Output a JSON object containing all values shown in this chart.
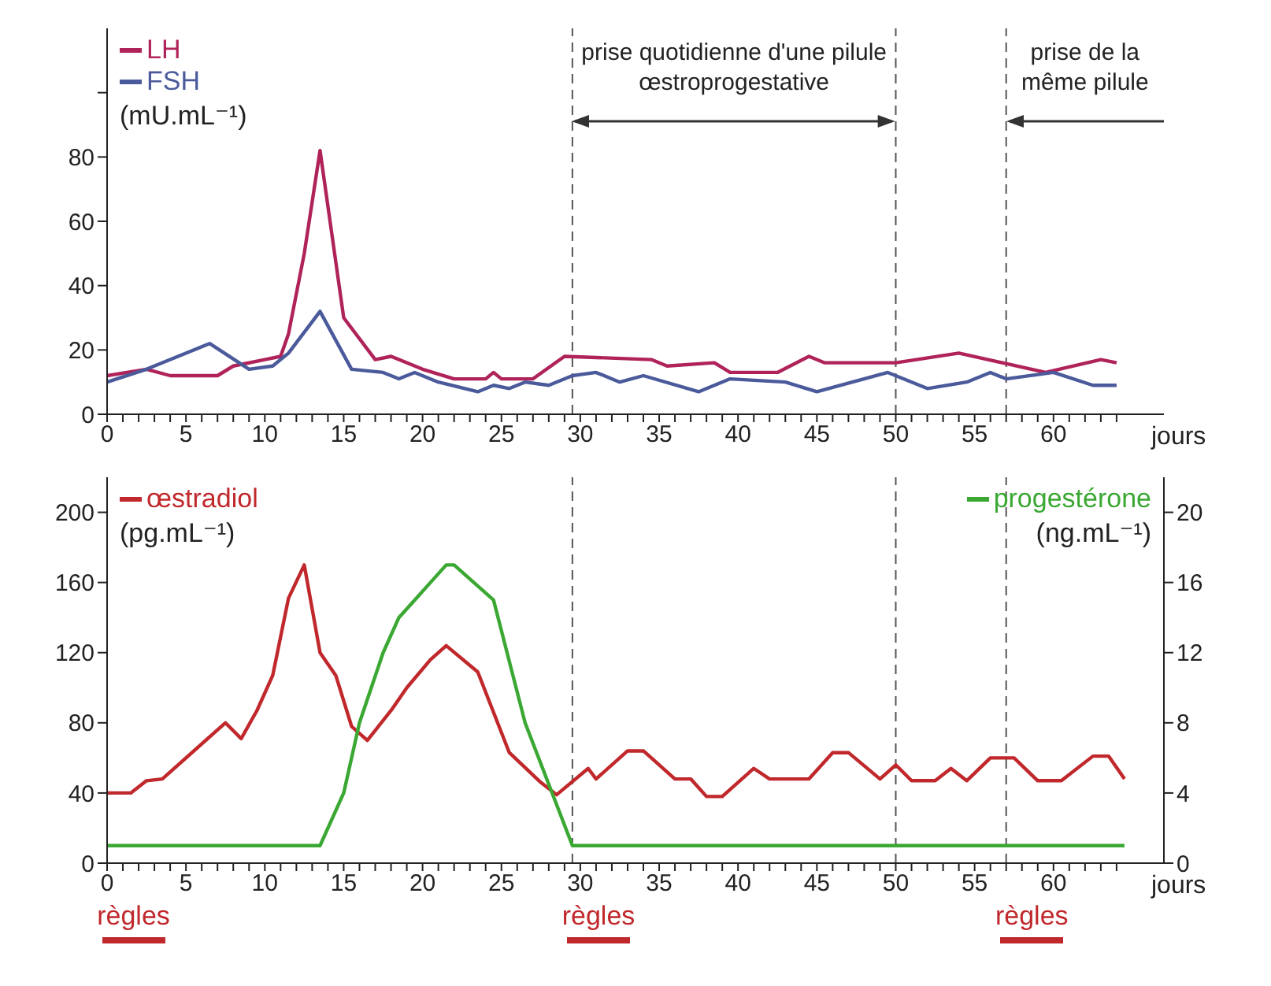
{
  "chart_data": [
    {
      "type": "line",
      "xlabel": "jours",
      "ylabel": "(mU.mL⁻¹)",
      "legend": "top left",
      "marker": "none",
      "line_style": "solid",
      "xlim": [
        0,
        67
      ],
      "ylim": [
        0,
        120
      ],
      "xticks": [
        0,
        {
          "value": 1,
          "label": null
        },
        {
          "value": 2,
          "label": null
        },
        {
          "value": 3,
          "label": null
        },
        {
          "value": 4,
          "label": null
        },
        5,
        {
          "value": 6,
          "label": null
        },
        {
          "value": 7,
          "label": null
        },
        {
          "value": 8,
          "label": null
        },
        {
          "value": 9,
          "label": null
        },
        10,
        {
          "value": 11,
          "label": null
        },
        {
          "value": 12,
          "label": null
        },
        {
          "value": 13,
          "label": null
        },
        {
          "value": 14,
          "label": null
        },
        15,
        {
          "value": 16,
          "label": null
        },
        {
          "value": 17,
          "label": null
        },
        {
          "value": 18,
          "label": null
        },
        {
          "value": 19,
          "label": null
        },
        20,
        {
          "value": 21,
          "label": null
        },
        {
          "value": 22,
          "label": null
        },
        {
          "value": 23,
          "label": null
        },
        {
          "value": 24,
          "label": null
        },
        25,
        {
          "value": 26,
          "label": null
        },
        {
          "value": 27,
          "label": null
        },
        {
          "value": 28,
          "label": null
        },
        {
          "value": 29,
          "label": null
        },
        30,
        {
          "value": 31,
          "label": null
        },
        {
          "value": 32,
          "label": null
        },
        {
          "value": 33,
          "label": null
        },
        {
          "value": 34,
          "label": null
        },
        35,
        {
          "value": 36,
          "label": null
        },
        {
          "value": 37,
          "label": null
        },
        {
          "value": 38,
          "label": null
        },
        {
          "value": 39,
          "label": null
        },
        40,
        {
          "value": 41,
          "label": null
        },
        {
          "value": 42,
          "label": null
        },
        {
          "value": 43,
          "label": null
        },
        {
          "value": 44,
          "label": null
        },
        45,
        {
          "value": 46,
          "label": null
        },
        {
          "value": 47,
          "label": null
        },
        {
          "value": 48,
          "label": null
        },
        {
          "value": 49,
          "label": null
        },
        50,
        {
          "value": 51,
          "label": null
        },
        {
          "value": 52,
          "label": null
        },
        {
          "value": 53,
          "label": null
        },
        {
          "value": 54,
          "label": null
        },
        55,
        {
          "value": 56,
          "label": null
        },
        {
          "value": 57,
          "label": null
        },
        {
          "value": 58,
          "label": null
        },
        {
          "value": 59,
          "label": null
        },
        60,
        {
          "value": 61,
          "label": null
        },
        {
          "value": 62,
          "label": null
        },
        {
          "value": 63,
          "label": null
        },
        {
          "value": 64,
          "label": null
        }
      ],
      "yticks": [
        0,
        20,
        40,
        60,
        80,
        {
          "value": 100,
          "label": null
        }
      ],
      "series": [
        {
          "name": "LH",
          "color": "#b0235a",
          "x": [
            0,
            2.5,
            4,
            7,
            8,
            10,
            11,
            11.5,
            12.5,
            13.5,
            15,
            17,
            18,
            20,
            22,
            24,
            24.5,
            25,
            27,
            29,
            34.5,
            35.5,
            38.5,
            39.5,
            42.5,
            44.5,
            45.5,
            50,
            54,
            59.5,
            63,
            64
          ],
          "values": [
            12,
            14,
            12,
            12,
            15,
            17,
            18,
            25,
            50,
            82,
            30,
            17,
            18,
            14,
            11,
            11,
            13,
            11,
            11,
            18,
            17,
            15,
            16,
            13,
            13,
            18,
            16,
            16,
            19,
            13,
            17,
            16
          ]
        },
        {
          "name": "FSH",
          "color": "#4a5a9a",
          "x": [
            0,
            2.5,
            6.5,
            9,
            10.5,
            11.5,
            13.5,
            15.5,
            17.5,
            18.5,
            19.5,
            21,
            23.5,
            24.5,
            25.5,
            26.5,
            28,
            29.5,
            31,
            32.5,
            34,
            37.5,
            39.5,
            43,
            45,
            49.5,
            52,
            54.5,
            56,
            57,
            60,
            62.5,
            64
          ],
          "values": [
            10,
            14,
            22,
            14,
            15,
            19,
            32,
            14,
            13,
            11,
            13,
            10,
            7,
            9,
            8,
            10,
            9,
            12,
            13,
            10,
            12,
            7,
            11,
            10,
            7,
            13,
            8,
            10,
            13,
            11,
            13,
            9,
            9
          ]
        }
      ],
      "ref_lines": [
        {
          "axis": "x",
          "value": 29.5,
          "label": null,
          "color": "#555555",
          "line_style": "dashed"
        },
        {
          "axis": "x",
          "value": 50,
          "label": null,
          "color": "#555555",
          "line_style": "dashed"
        },
        {
          "axis": "x",
          "value": 57,
          "label": null,
          "color": "#555555",
          "line_style": "dashed"
        }
      ],
      "annotations": [
        {
          "text": "prise quotidienne d'une pilule œstroprogestative",
          "x": 29.5
        },
        {
          "text": "prise de la même pilule",
          "x": 57
        }
      ]
    },
    {
      "type": "line",
      "xlabel": "jours",
      "ylabel": "(pg.mL⁻¹)",
      "y2label": "(ng.mL⁻¹)",
      "legend": "top left",
      "marker": "none",
      "line_style": "solid",
      "xlim": [
        0,
        67
      ],
      "ylim": [
        0,
        220
      ],
      "y2lim": [
        0,
        22
      ],
      "xticks": [
        0,
        {
          "value": 1,
          "label": null
        },
        {
          "value": 2,
          "label": null
        },
        {
          "value": 3,
          "label": null
        },
        {
          "value": 4,
          "label": null
        },
        5,
        {
          "value": 6,
          "label": null
        },
        {
          "value": 7,
          "label": null
        },
        {
          "value": 8,
          "label": null
        },
        {
          "value": 9,
          "label": null
        },
        10,
        {
          "value": 11,
          "label": null
        },
        {
          "value": 12,
          "label": null
        },
        {
          "value": 13,
          "label": null
        },
        {
          "value": 14,
          "label": null
        },
        15,
        {
          "value": 16,
          "label": null
        },
        {
          "value": 17,
          "label": null
        },
        {
          "value": 18,
          "label": null
        },
        {
          "value": 19,
          "label": null
        },
        20,
        {
          "value": 21,
          "label": null
        },
        {
          "value": 22,
          "label": null
        },
        {
          "value": 23,
          "label": null
        },
        {
          "value": 24,
          "label": null
        },
        25,
        {
          "value": 26,
          "label": null
        },
        {
          "value": 27,
          "label": null
        },
        {
          "value": 28,
          "label": null
        },
        {
          "value": 29,
          "label": null
        },
        30,
        {
          "value": 31,
          "label": null
        },
        {
          "value": 32,
          "label": null
        },
        {
          "value": 33,
          "label": null
        },
        {
          "value": 34,
          "label": null
        },
        35,
        {
          "value": 36,
          "label": null
        },
        {
          "value": 37,
          "label": null
        },
        {
          "value": 38,
          "label": null
        },
        {
          "value": 39,
          "label": null
        },
        40,
        {
          "value": 41,
          "label": null
        },
        {
          "value": 42,
          "label": null
        },
        {
          "value": 43,
          "label": null
        },
        {
          "value": 44,
          "label": null
        },
        45,
        {
          "value": 46,
          "label": null
        },
        {
          "value": 47,
          "label": null
        },
        {
          "value": 48,
          "label": null
        },
        {
          "value": 49,
          "label": null
        },
        50,
        {
          "value": 51,
          "label": null
        },
        {
          "value": 52,
          "label": null
        },
        {
          "value": 53,
          "label": null
        },
        {
          "value": 54,
          "label": null
        },
        55,
        {
          "value": 56,
          "label": null
        },
        {
          "value": 57,
          "label": null
        },
        {
          "value": 58,
          "label": null
        },
        {
          "value": 59,
          "label": null
        },
        60,
        {
          "value": 61,
          "label": null
        },
        {
          "value": 62,
          "label": null
        },
        {
          "value": 63,
          "label": null
        },
        {
          "value": 64,
          "label": null
        }
      ],
      "yticks": [
        0,
        40,
        80,
        120,
        160,
        200
      ],
      "y2ticks": [
        0,
        4,
        8,
        12,
        16,
        20
      ],
      "series": [
        {
          "name": "œstradiol",
          "color": "#c0282c",
          "x": [
            0,
            1.5,
            2.5,
            3.5,
            7.5,
            8.5,
            9.5,
            10.5,
            11.5,
            12.5,
            13.5,
            14.5,
            15.5,
            16.5,
            18,
            19,
            20.5,
            21.5,
            23.5,
            25.5,
            27.5,
            28.5,
            30.5,
            31,
            33,
            34,
            36,
            37,
            38,
            39,
            41,
            42,
            44.5,
            46,
            47,
            49,
            50,
            51,
            52.5,
            53.5,
            54.5,
            56,
            57.5,
            59,
            60.5,
            62.5,
            63.5,
            64.5
          ],
          "values": [
            40,
            40,
            47,
            48,
            80,
            71,
            87,
            107,
            151,
            170,
            120,
            107,
            78,
            70,
            87,
            100,
            116,
            124,
            109,
            63,
            46,
            39,
            54,
            48,
            64,
            64,
            48,
            48,
            38,
            38,
            54,
            48,
            48,
            63,
            63,
            48,
            56,
            47,
            47,
            54,
            47,
            60,
            60,
            47,
            47,
            61,
            61,
            48
          ]
        },
        {
          "name": "progestérone",
          "color": "#3aa832",
          "axis": "y2",
          "x": [
            0,
            13.5,
            15,
            16,
            17.5,
            18.5,
            19.5,
            20.5,
            21.5,
            22,
            24.5,
            26.5,
            29.5,
            64.5
          ],
          "values": [
            1,
            1,
            4,
            8,
            12,
            14,
            15,
            16,
            17,
            17,
            15,
            8,
            1,
            1
          ]
        }
      ],
      "ref_lines": [
        {
          "axis": "x",
          "value": 29.5,
          "label": null,
          "color": "#555555",
          "line_style": "dashed"
        },
        {
          "axis": "x",
          "value": 50,
          "label": null,
          "color": "#555555",
          "line_style": "dashed"
        },
        {
          "axis": "x",
          "value": 57,
          "label": null,
          "color": "#555555",
          "line_style": "dashed"
        }
      ],
      "annotations": [
        "règles",
        "règles",
        "règles"
      ]
    }
  ]
}
